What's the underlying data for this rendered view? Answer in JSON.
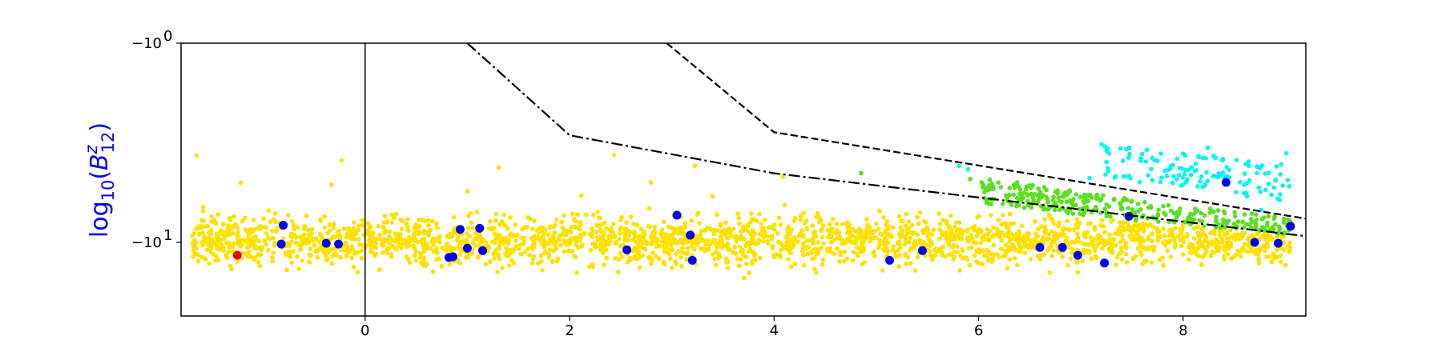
{
  "chart_data": {
    "type": "scatter",
    "title": "",
    "xlabel": "",
    "ylabel": {
      "text": "log",
      "sub": "10",
      "open": "(",
      "var": "B",
      "sup": "z",
      "sub2": "12",
      "close": ")",
      "color": "#0000ff"
    },
    "xlim": [
      -1.8,
      9.2
    ],
    "ylim": [
      -50,
      -1
    ],
    "yscale": "symlog-negative",
    "grid": false,
    "x_ticks": [
      {
        "value": 0,
        "label": "0"
      },
      {
        "value": 2,
        "label": "2"
      },
      {
        "value": 4,
        "label": "4"
      },
      {
        "value": 6,
        "label": "6"
      },
      {
        "value": 8,
        "label": "8"
      }
    ],
    "y_ticks": [
      {
        "value": -1,
        "base": "−10",
        "exp": "0"
      },
      {
        "value": -10,
        "base": "−10",
        "exp": "1"
      }
    ],
    "vline_x": 0,
    "lines": [
      {
        "name": "dashed",
        "style": "dashed",
        "color": "#000000",
        "x": [
          2.95,
          4.0,
          9.2
        ],
        "y": [
          -1.0,
          -2.8,
          -7.6
        ]
      },
      {
        "name": "dashdot",
        "style": "dashdot",
        "color": "#000000",
        "x": [
          1.0,
          2.0,
          4.0,
          9.2
        ],
        "y": [
          -1.0,
          -2.9,
          -4.5,
          -9.3
        ]
      }
    ],
    "point_colors": {
      "background": "#ffe100",
      "between": "#5bdf20",
      "above": "#00f5f5",
      "highlight": "#0000f0",
      "outlier": "#f00000"
    },
    "highlight_points": [
      {
        "x": -0.8,
        "y": -8.2
      },
      {
        "x": -0.82,
        "y": -10.2
      },
      {
        "x": -0.38,
        "y": -10.1
      },
      {
        "x": -0.26,
        "y": -10.2
      },
      {
        "x": 0.82,
        "y": -11.9
      },
      {
        "x": 0.86,
        "y": -11.8
      },
      {
        "x": 0.93,
        "y": -8.6
      },
      {
        "x": 1.0,
        "y": -10.7
      },
      {
        "x": 1.12,
        "y": -8.5
      },
      {
        "x": 1.15,
        "y": -11.0
      },
      {
        "x": 2.56,
        "y": -10.9
      },
      {
        "x": 3.05,
        "y": -7.3
      },
      {
        "x": 3.18,
        "y": -9.2
      },
      {
        "x": 3.2,
        "y": -12.3
      },
      {
        "x": 5.13,
        "y": -12.3
      },
      {
        "x": 5.45,
        "y": -11.0
      },
      {
        "x": 6.6,
        "y": -10.6
      },
      {
        "x": 6.82,
        "y": -10.6
      },
      {
        "x": 6.97,
        "y": -11.6
      },
      {
        "x": 7.23,
        "y": -12.7
      },
      {
        "x": 7.47,
        "y": -7.4
      },
      {
        "x": 8.42,
        "y": -5.0
      },
      {
        "x": 8.7,
        "y": -10.0
      },
      {
        "x": 8.93,
        "y": -10.1
      },
      {
        "x": 9.05,
        "y": -8.3
      }
    ],
    "outlier_points": [
      {
        "x": -1.25,
        "y": -11.6
      }
    ],
    "scatter_density": {
      "n_points": 4500,
      "x_range": [
        -1.7,
        9.05
      ],
      "median_y": -9.8,
      "spread": 0.11
    }
  }
}
